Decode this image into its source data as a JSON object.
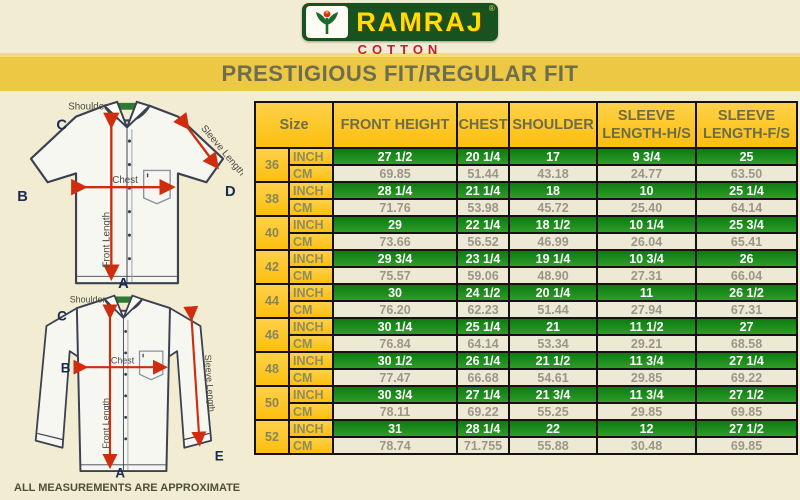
{
  "brand": {
    "name": "RAMRAJ",
    "registered_mark": "®",
    "subtitle": "COTTON"
  },
  "title": "PRESTIGIOUS FIT/REGULAR FIT",
  "diagram": {
    "short_sleeve_shirt": {
      "labels": {
        "shoulder": "Shoulder",
        "chest": "Chest",
        "front_length": "Front Length",
        "sleeve_length": "Sleeve Length"
      },
      "points": {
        "a": "A",
        "b": "B",
        "c": "C",
        "d": "D"
      }
    },
    "long_sleeve_shirt": {
      "labels": {
        "shoulder": "Shoulder",
        "chest": "Chest",
        "front_length": "Front Length",
        "sleeve_length": "Sleeve Length"
      },
      "points": {
        "a": "A",
        "b": "B",
        "c": "C",
        "e": "E"
      }
    },
    "footnote": "ALL MEASUREMENTS ARE APPROXIMATE"
  },
  "table": {
    "headers": {
      "size": "Size",
      "columns": [
        "FRONT HEIGHT",
        "CHEST",
        "SHOULDER",
        "SLEEVE LENGTH-H/S",
        "SLEEVE LENGTH-F/S"
      ]
    },
    "unit_labels": {
      "inch": "INCH",
      "cm": "CM"
    },
    "rows": [
      {
        "size": "36",
        "inch": [
          "27 1/2",
          "20 1/4",
          "17",
          "9 3/4",
          "25"
        ],
        "cm": [
          "69.85",
          "51.44",
          "43.18",
          "24.77",
          "63.50"
        ]
      },
      {
        "size": "38",
        "inch": [
          "28 1/4",
          "21 1/4",
          "18",
          "10",
          "25 1/4"
        ],
        "cm": [
          "71.76",
          "53.98",
          "45.72",
          "25.40",
          "64.14"
        ]
      },
      {
        "size": "40",
        "inch": [
          "29",
          "22 1/4",
          "18 1/2",
          "10 1/4",
          "25 3/4"
        ],
        "cm": [
          "73.66",
          "56.52",
          "46.99",
          "26.04",
          "65.41"
        ]
      },
      {
        "size": "42",
        "inch": [
          "29 3/4",
          "23 1/4",
          "19 1/4",
          "10 3/4",
          "26"
        ],
        "cm": [
          "75.57",
          "59.06",
          "48.90",
          "27.31",
          "66.04"
        ]
      },
      {
        "size": "44",
        "inch": [
          "30",
          "24 1/2",
          "20 1/4",
          "11",
          "26 1/2"
        ],
        "cm": [
          "76.20",
          "62.23",
          "51.44",
          "27.94",
          "67.31"
        ]
      },
      {
        "size": "46",
        "inch": [
          "30 1/4",
          "25 1/4",
          "21",
          "11 1/2",
          "27"
        ],
        "cm": [
          "76.84",
          "64.14",
          "53.34",
          "29.21",
          "68.58"
        ]
      },
      {
        "size": "48",
        "inch": [
          "30 1/2",
          "26 1/4",
          "21 1/2",
          "11 3/4",
          "27 1/4"
        ],
        "cm": [
          "77.47",
          "66.68",
          "54.61",
          "29.85",
          "69.22"
        ]
      },
      {
        "size": "50",
        "inch": [
          "30 3/4",
          "27 1/4",
          "21 3/4",
          "11 3/4",
          "27 1/2"
        ],
        "cm": [
          "78.11",
          "69.22",
          "55.25",
          "29.85",
          "69.85"
        ]
      },
      {
        "size": "52",
        "inch": [
          "31",
          "28 1/4",
          "22",
          "12",
          "27 1/2"
        ],
        "cm": [
          "78.74",
          "71.755",
          "55.88",
          "30.48",
          "69.85"
        ]
      }
    ]
  },
  "colors": {
    "page_background": "#f1ecd2",
    "title_bar": "#ecc844",
    "table_gold": "#fdc41c",
    "inch_row_green": "#1b8a1b",
    "cm_row_cream": "#eee9d4",
    "logo_green": "#17521f",
    "logo_yellow": "#ffdf00",
    "cotton_red": "#c41e2c",
    "arrow_red": "#cf2d0e"
  }
}
